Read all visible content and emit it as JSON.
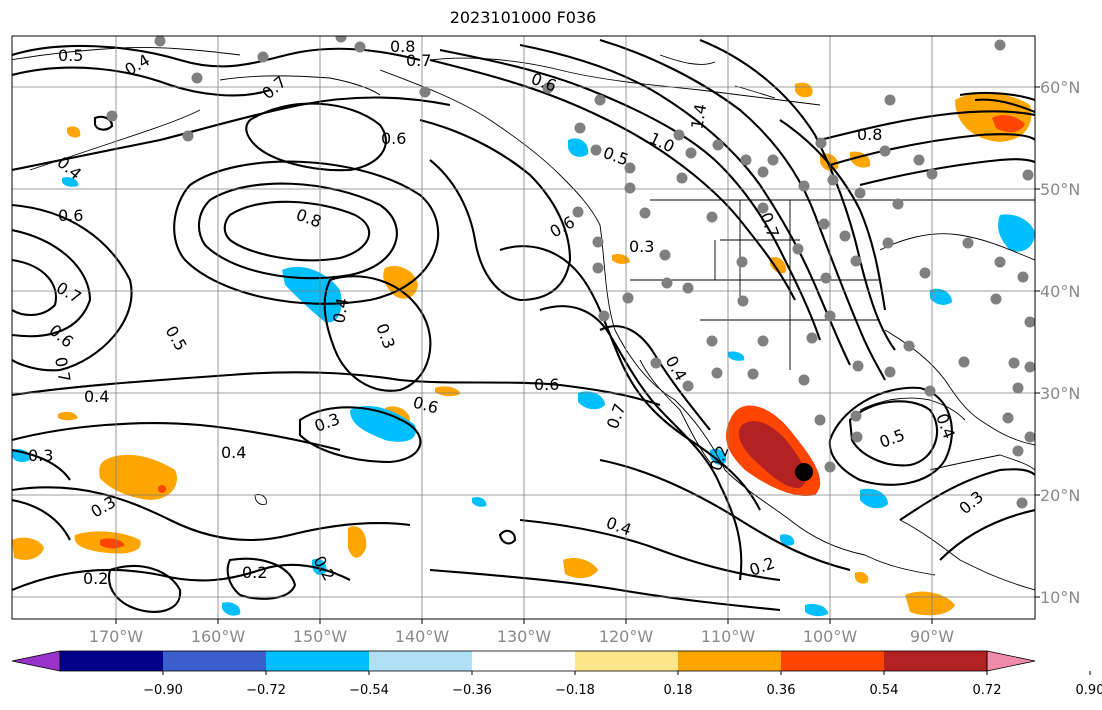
{
  "title": "2023101000 F036",
  "map": {
    "x_ticks": [
      "170°W",
      "160°W",
      "150°W",
      "140°W",
      "130°W",
      "120°W",
      "110°W",
      "100°W",
      "90°W"
    ],
    "y_ticks": [
      "60°N",
      "50°N",
      "40°N",
      "30°N",
      "20°N",
      "10°N"
    ],
    "tick_color": "#8a8a8a",
    "contour_color": "#000000",
    "station_color": "#808080",
    "contour_labels": [
      "0.5",
      "0.4",
      "0.8",
      "0.7",
      "0.7",
      "0.6",
      "0.6",
      "1.0",
      "0.5",
      "1.4",
      "0.8",
      "0.4",
      "0.6",
      "0.8",
      "0.6",
      "0.7",
      "0.5",
      "0.6",
      "0.7",
      "0.4",
      "0.3",
      "0.4",
      "0.3",
      "0.6",
      "0.3",
      "0.6",
      "0.4",
      "0.3",
      "0.3",
      "0.4",
      "0.5",
      "0.4",
      "0.7",
      "0.2",
      "0.4",
      "0.2",
      "0.2",
      "0.2",
      "0.3",
      "0.2",
      "0.7"
    ]
  },
  "colorbar": {
    "ticks": [
      "−0.90",
      "−0.72",
      "−0.54",
      "−0.36",
      "−0.18",
      "0.18",
      "0.36",
      "0.54",
      "0.72",
      "0.90"
    ],
    "colors": [
      "#9932cc",
      "#00008b",
      "#3a5fcd",
      "#00bfff",
      "#b0e0f5",
      "#ffffff",
      "#fde68a",
      "#ffa500",
      "#ff4500",
      "#b22222",
      "#f08caa"
    ]
  }
}
